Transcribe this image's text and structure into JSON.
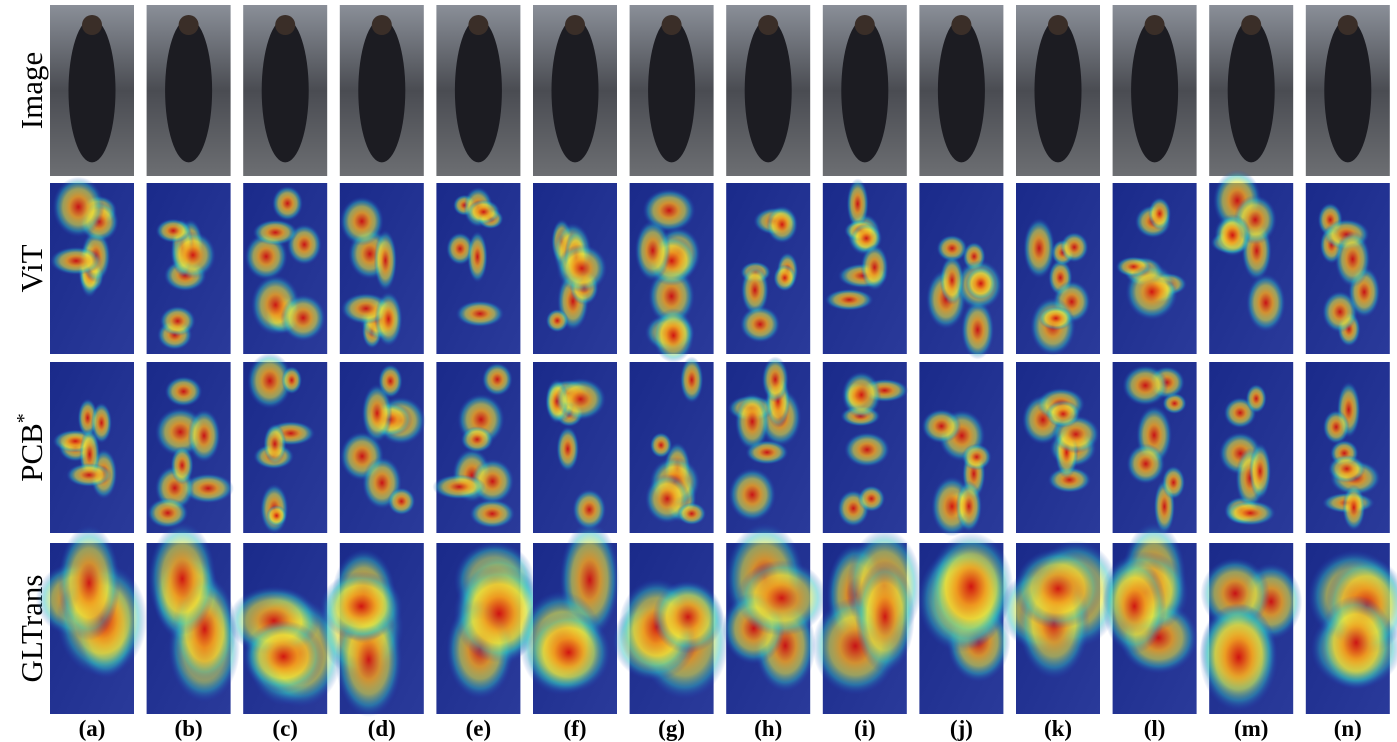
{
  "figure": {
    "row_labels": [
      {
        "text": "Image"
      },
      {
        "text": "ViT"
      },
      {
        "text": "PCB",
        "superscript": "*"
      },
      {
        "text": "GLTrans"
      }
    ],
    "column_labels": [
      "(a)",
      "(b)",
      "(c)",
      "(d)",
      "(e)",
      "(f)",
      "(g)",
      "(h)",
      "(i)",
      "(j)",
      "(k)",
      "(l)",
      "(m)",
      "(n)"
    ]
  }
}
